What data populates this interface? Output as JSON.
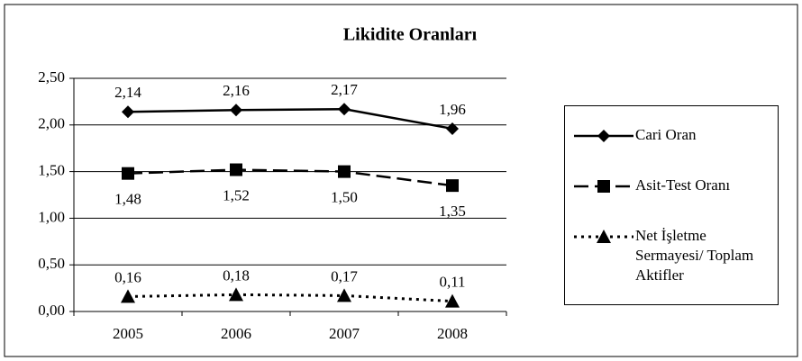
{
  "chart_data": {
    "type": "line",
    "title": "Likidite Oranları",
    "categories": [
      "2005",
      "2006",
      "2007",
      "2008"
    ],
    "series": [
      {
        "name": "Cari Oran",
        "color": "#000000",
        "marker": "diamond",
        "dash": "solid",
        "values": [
          2.14,
          2.16,
          2.17,
          1.96
        ],
        "value_labels": [
          "2,14",
          "2,16",
          "2,17",
          "1,96"
        ]
      },
      {
        "name": "Asit-Test Oranı",
        "color": "#000000",
        "marker": "square",
        "dash": "dashed",
        "values": [
          1.48,
          1.52,
          1.5,
          1.35
        ],
        "value_labels": [
          "1,48",
          "1,52",
          "1,50",
          "1,35"
        ]
      },
      {
        "name": "Net İşletme Sermayesi/ Toplam Aktifler",
        "color": "#000000",
        "marker": "triangle",
        "dash": "dotted",
        "values": [
          0.16,
          0.18,
          0.17,
          0.11
        ],
        "value_labels": [
          "0,16",
          "0,18",
          "0,17",
          "0,11"
        ]
      }
    ],
    "ylim": [
      0,
      2.5
    ],
    "yticks": [
      {
        "value": 0,
        "label": "0,00"
      },
      {
        "value": 0.5,
        "label": "0,50"
      },
      {
        "value": 1,
        "label": "1,00"
      },
      {
        "value": 1.5,
        "label": "1,50"
      },
      {
        "value": 2,
        "label": "2,00"
      },
      {
        "value": 2.5,
        "label": "2,50"
      }
    ],
    "grid": true,
    "legend": "right"
  }
}
